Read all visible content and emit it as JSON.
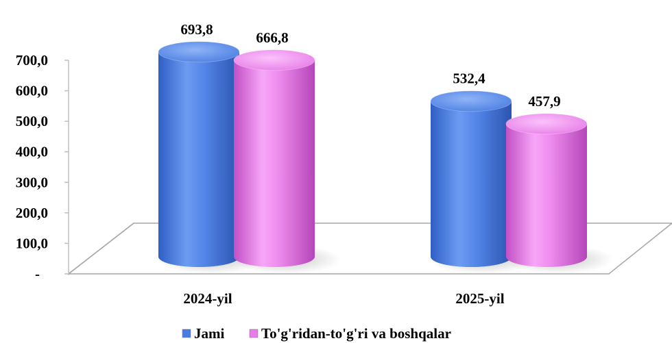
{
  "chart_data": {
    "type": "bar",
    "categories": [
      "2024-yil",
      "2025-yil"
    ],
    "series": [
      {
        "name": "Jami",
        "values": [
          693.8,
          532.4
        ],
        "labels": [
          "693,8",
          "532,4"
        ],
        "color": "#4a7de2"
      },
      {
        "name": "To'g'ridan-to'g'ri va boshqalar",
        "values": [
          666.8,
          457.9
        ],
        "labels": [
          "666,8",
          "457,9"
        ],
        "color": "#e77be7"
      }
    ],
    "ylim": [
      0,
      700
    ],
    "yticks": [
      {
        "value": 0,
        "label": "-"
      },
      {
        "value": 100,
        "label": "100,0"
      },
      {
        "value": 200,
        "label": "200,0"
      },
      {
        "value": 300,
        "label": "300,0"
      },
      {
        "value": 400,
        "label": "400,0"
      },
      {
        "value": 500,
        "label": "500,0"
      },
      {
        "value": 600,
        "label": "600,0"
      },
      {
        "value": 700,
        "label": "700,0"
      }
    ],
    "grid": false,
    "legend": "bottom",
    "style": "3d-cylinder"
  }
}
